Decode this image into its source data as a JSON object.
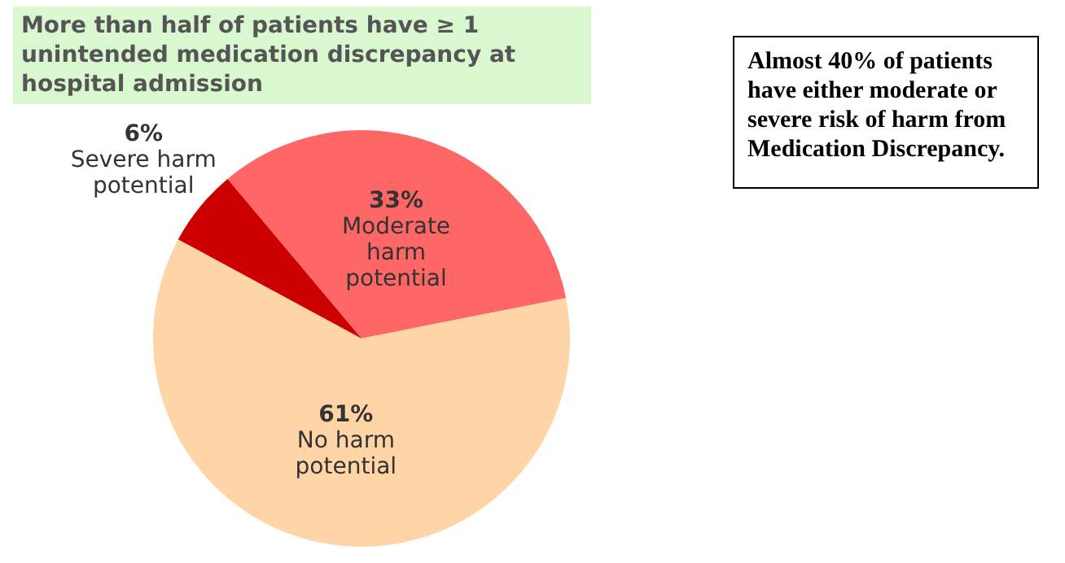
{
  "chart_data": {
    "type": "pie",
    "title": "More than half of patients have ≥ 1 unintended medication discrepancy at hospital admission",
    "categories": [
      "Moderate harm potential",
      "No harm potential",
      "Severe harm potential"
    ],
    "values": [
      33,
      61,
      6
    ],
    "value_labels": [
      "33%",
      "61%",
      "6%"
    ],
    "colors": [
      "#ff6666",
      "#ffd5a8",
      "#cc0000"
    ],
    "legend": false,
    "annotations": [
      "Almost 40% of patients have either moderate or severe risk of harm from Medication Discrepancy."
    ]
  }
}
